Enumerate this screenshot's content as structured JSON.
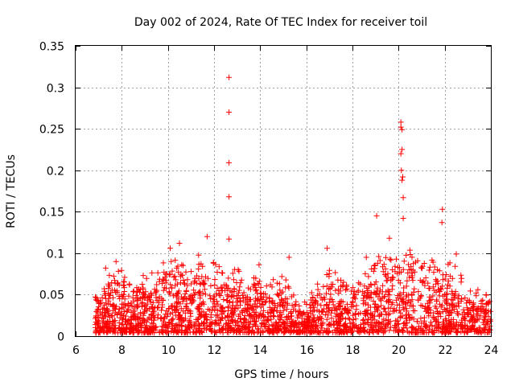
{
  "chart_data": {
    "type": "scatter",
    "title": "Day 002 of 2024, Rate Of TEC Index for receiver toil",
    "xlabel": "GPS time / hours",
    "ylabel": "ROTI / TECUs",
    "xlim": [
      6,
      24
    ],
    "ylim": [
      0,
      0.35
    ],
    "xticks": [
      6,
      8,
      10,
      12,
      14,
      16,
      18,
      20,
      22,
      24
    ],
    "yticks": [
      0,
      0.05,
      0.1,
      0.15,
      0.2,
      0.25,
      0.3,
      0.35
    ],
    "xtick_labels": [
      "6",
      "8",
      "10",
      "12",
      "14",
      "16",
      "18",
      "20",
      "22",
      "24"
    ],
    "ytick_labels": [
      "0",
      "0.05",
      "0.1",
      "0.15",
      "0.2",
      "0.25",
      "0.3",
      "0.35"
    ],
    "grid": true,
    "marker": "plus",
    "marker_color": "#ff0000",
    "series": [
      {
        "name": "ROTI",
        "outliers": [
          {
            "x": 12.65,
            "y": 0.312
          },
          {
            "x": 12.65,
            "y": 0.27
          },
          {
            "x": 12.65,
            "y": 0.209
          },
          {
            "x": 12.65,
            "y": 0.168
          },
          {
            "x": 12.65,
            "y": 0.117
          },
          {
            "x": 20.1,
            "y": 0.258
          },
          {
            "x": 20.1,
            "y": 0.252
          },
          {
            "x": 20.15,
            "y": 0.249
          },
          {
            "x": 20.15,
            "y": 0.225
          },
          {
            "x": 20.1,
            "y": 0.22
          },
          {
            "x": 20.12,
            "y": 0.2
          },
          {
            "x": 20.18,
            "y": 0.192
          },
          {
            "x": 20.15,
            "y": 0.188
          },
          {
            "x": 20.2,
            "y": 0.167
          },
          {
            "x": 21.9,
            "y": 0.153
          },
          {
            "x": 21.88,
            "y": 0.137
          },
          {
            "x": 19.05,
            "y": 0.145
          },
          {
            "x": 20.2,
            "y": 0.142
          },
          {
            "x": 19.6,
            "y": 0.118
          },
          {
            "x": 11.7,
            "y": 0.12
          },
          {
            "x": 10.5,
            "y": 0.112
          },
          {
            "x": 10.1,
            "y": 0.106
          },
          {
            "x": 16.9,
            "y": 0.106
          },
          {
            "x": 22.5,
            "y": 0.099
          },
          {
            "x": 15.25,
            "y": 0.095
          },
          {
            "x": 7.75,
            "y": 0.09
          },
          {
            "x": 13.95,
            "y": 0.086
          },
          {
            "x": 18.6,
            "y": 0.095
          },
          {
            "x": 7.3,
            "y": 0.082
          }
        ],
        "envelope": [
          {
            "x": 7.0,
            "y": 0.035
          },
          {
            "x": 7.5,
            "y": 0.06
          },
          {
            "x": 8.0,
            "y": 0.06
          },
          {
            "x": 8.5,
            "y": 0.05
          },
          {
            "x": 9.0,
            "y": 0.055
          },
          {
            "x": 9.5,
            "y": 0.06
          },
          {
            "x": 10.0,
            "y": 0.07
          },
          {
            "x": 10.5,
            "y": 0.07
          },
          {
            "x": 11.0,
            "y": 0.06
          },
          {
            "x": 11.5,
            "y": 0.08
          },
          {
            "x": 12.0,
            "y": 0.065
          },
          {
            "x": 12.5,
            "y": 0.06
          },
          {
            "x": 13.0,
            "y": 0.06
          },
          {
            "x": 13.5,
            "y": 0.055
          },
          {
            "x": 14.0,
            "y": 0.06
          },
          {
            "x": 14.5,
            "y": 0.05
          },
          {
            "x": 15.0,
            "y": 0.055
          },
          {
            "x": 15.5,
            "y": 0.035
          },
          {
            "x": 16.0,
            "y": 0.03
          },
          {
            "x": 16.5,
            "y": 0.05
          },
          {
            "x": 17.0,
            "y": 0.06
          },
          {
            "x": 17.5,
            "y": 0.055
          },
          {
            "x": 18.0,
            "y": 0.045
          },
          {
            "x": 18.5,
            "y": 0.06
          },
          {
            "x": 19.0,
            "y": 0.07
          },
          {
            "x": 19.5,
            "y": 0.075
          },
          {
            "x": 20.0,
            "y": 0.08
          },
          {
            "x": 20.5,
            "y": 0.08
          },
          {
            "x": 21.0,
            "y": 0.065
          },
          {
            "x": 21.5,
            "y": 0.07
          },
          {
            "x": 22.0,
            "y": 0.07
          },
          {
            "x": 22.5,
            "y": 0.065
          },
          {
            "x": 23.0,
            "y": 0.04
          },
          {
            "x": 23.5,
            "y": 0.045
          },
          {
            "x": 24.0,
            "y": 0.035
          }
        ],
        "floor": 0.004,
        "x_start": 6.85,
        "x_end": 24.0,
        "density": 2200
      }
    ]
  }
}
